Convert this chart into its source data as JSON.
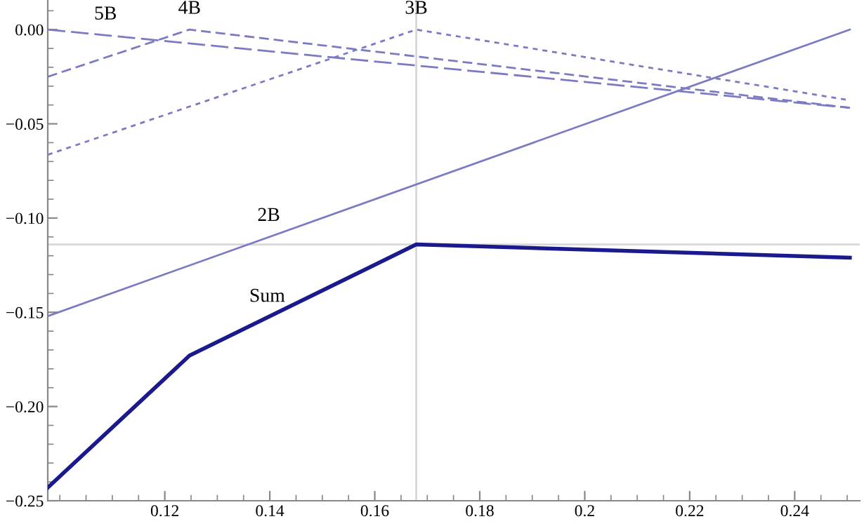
{
  "chart_data": {
    "type": "line",
    "xlim": [
      0.0977,
      0.2524
    ],
    "ylim": [
      -0.25,
      0.0157
    ],
    "xticks": [
      0.12,
      0.14,
      0.16,
      0.18,
      0.2,
      0.22,
      0.24
    ],
    "yticks": [
      {
        "value": 0.0,
        "label": "0.00"
      },
      {
        "value": -0.05,
        "label": "−0.05"
      },
      {
        "value": -0.1,
        "label": "−0.10"
      },
      {
        "value": -0.15,
        "label": "−0.15"
      },
      {
        "value": -0.2,
        "label": "−0.20"
      },
      {
        "value": -0.25,
        "label": "−0.25"
      }
    ],
    "grid": false,
    "legend": false,
    "marker": "none",
    "series": [
      {
        "color": "#7b7bc4",
        "line_style": "solid",
        "x": [
          0.0977,
          0.2505
        ],
        "values": [
          -0.152,
          0.0
        ]
      },
      {
        "color": "#7b7bc4",
        "line_style": "dashed",
        "x": [
          0.0977,
          0.1679,
          0.2505
        ],
        "values": [
          -0.0664,
          0.0,
          -0.0375
        ]
      },
      {
        "color": "#7b7bc4",
        "line_style": "dashed",
        "x": [
          0.0977,
          0.1247,
          0.2505
        ],
        "values": [
          -0.025,
          0.0,
          -0.0415
        ]
      },
      {
        "color": "#7b7bc4",
        "line_style": "dashed",
        "x": [
          0.0977,
          0.2505
        ],
        "values": [
          0.0,
          -0.0415
        ]
      },
      {
        "color": "#1a1a8c",
        "line_style": "solid",
        "x": [
          0.0977,
          0.1247,
          0.1679,
          0.2505
        ],
        "values": [
          -0.243,
          -0.173,
          -0.114,
          -0.121
        ]
      }
    ],
    "ref_lines": [
      {
        "axis": "x",
        "value": 0.1679,
        "color": "#d8d8d8"
      },
      {
        "axis": "y",
        "value": -0.114,
        "color": "#d8d8d8"
      }
    ],
    "annotations": [
      {
        "text": "5B",
        "x": 0.1087,
        "y": -0.003
      },
      {
        "text": "4B",
        "x": 0.1247,
        "y": 0.0
      },
      {
        "text": "3B",
        "x": 0.1679,
        "y": 0.0
      },
      {
        "text": "2B",
        "x": 0.1398,
        "y": -0.1099
      },
      {
        "text": "Sum",
        "x": 0.1395,
        "y": -0.1528
      }
    ]
  }
}
